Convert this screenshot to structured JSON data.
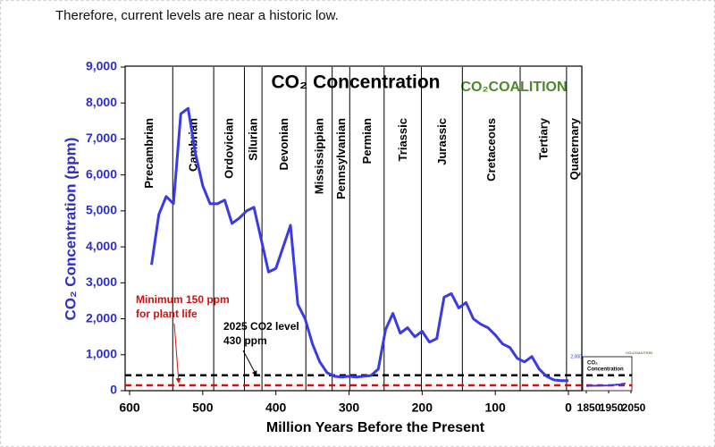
{
  "text": "Therefore, current levels are near a historic low.",
  "chart_data": [
    {
      "type": "line",
      "title": "CO₂ Concentration",
      "logo": "CO₂COALITION",
      "xlabel": "Million Years Before the Present",
      "ylabel": "CO₂ Concentration (ppm)",
      "xlim": [
        600,
        0
      ],
      "ylim": [
        0,
        9000
      ],
      "xticks": [
        600,
        500,
        400,
        300,
        200,
        100,
        0
      ],
      "yticks": [
        0,
        {
          "value": 1000,
          "label": "1,000"
        },
        {
          "value": 2000,
          "label": "2,000"
        },
        {
          "value": 3000,
          "label": "3,000"
        },
        {
          "value": 4000,
          "label": "4,000"
        },
        {
          "value": 5000,
          "label": "5,000"
        },
        {
          "value": 6000,
          "label": "6,000"
        },
        {
          "value": 7000,
          "label": "7,000"
        },
        {
          "value": 8000,
          "label": "8,000"
        },
        {
          "value": 9000,
          "label": "9,000"
        }
      ],
      "periods": [
        "Precambrian",
        "Cambrian",
        "Ordovician",
        "Silurian",
        "Devonian",
        "Mississippian",
        "Pennsylvanian",
        "Permian",
        "Triassic",
        "Jurassic",
        "Cretaceous",
        "Tertiary",
        "Quaternary"
      ],
      "boundaries": [
        541,
        485,
        443,
        419,
        359,
        323,
        299,
        252,
        201,
        145,
        66,
        2.6
      ],
      "series": [
        {
          "color": "#3a3ae6",
          "x": [
            570,
            560,
            550,
            540,
            530,
            520,
            510,
            500,
            490,
            480,
            470,
            460,
            450,
            440,
            430,
            420,
            410,
            400,
            390,
            380,
            370,
            360,
            350,
            340,
            330,
            320,
            310,
            300,
            290,
            280,
            270,
            260,
            250,
            240,
            230,
            220,
            210,
            200,
            190,
            180,
            170,
            160,
            150,
            140,
            130,
            120,
            110,
            100,
            90,
            80,
            70,
            60,
            50,
            40,
            30,
            20,
            10,
            0
          ],
          "values": [
            3500,
            4900,
            5400,
            5200,
            7700,
            7850,
            6600,
            5700,
            5200,
            5200,
            5300,
            4650,
            4800,
            5000,
            5100,
            4200,
            3300,
            3400,
            4000,
            4600,
            2400,
            2000,
            1300,
            800,
            500,
            400,
            380,
            400,
            380,
            400,
            420,
            600,
            1700,
            2150,
            1600,
            1750,
            1500,
            1650,
            1350,
            1450,
            2600,
            2700,
            2300,
            2450,
            2000,
            1850,
            1750,
            1550,
            1300,
            1200,
            900,
            800,
            950,
            600,
            400,
            300,
            280,
            280
          ]
        }
      ],
      "reference_lines": [
        {
          "value": 430,
          "color": "#000000",
          "label_lines": [
            "2025 CO2 level",
            "430 ppm"
          ]
        },
        {
          "value": 150,
          "color": "#d01010",
          "label_lines": [
            "Minimum 150 ppm",
            "for plant life"
          ]
        }
      ]
    },
    {
      "type": "line",
      "title_lines": [
        "CO₂",
        "Concentration"
      ],
      "logo": "CO₂COALITION",
      "xlim": [
        1850,
        2050
      ],
      "ylim": [
        0,
        2000
      ],
      "xticks": [
        1850,
        1950,
        2050
      ],
      "yticks": [
        {
          "value": 2000,
          "label": "2,000"
        }
      ],
      "series": [
        {
          "color": "#3a3ae6",
          "x": [
            1850,
            1900,
            1950,
            2000,
            2025
          ],
          "values": [
            285,
            296,
            311,
            370,
            430
          ]
        }
      ]
    }
  ]
}
